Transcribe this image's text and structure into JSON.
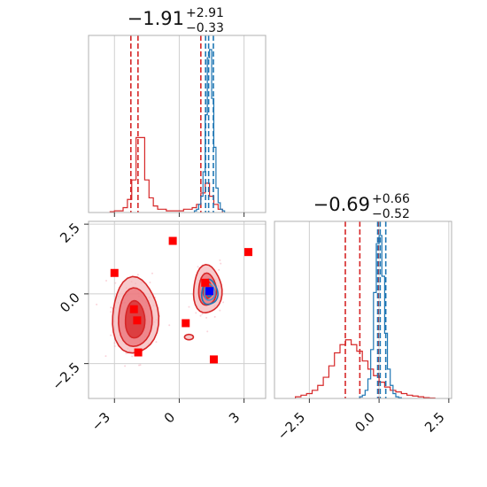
{
  "chart_data": [
    {
      "type": "histogram",
      "panel": "top-left",
      "title": "-1.91",
      "title_upper": "+2.91",
      "title_lower": "-0.33",
      "xlim": [
        -4.2,
        4.0
      ],
      "xticks": [
        -3,
        0,
        3
      ],
      "grid": true,
      "series": [
        {
          "color": "#d62728",
          "bin_edges": [
            -3.2,
            -3.0,
            -2.8,
            -2.6,
            -2.4,
            -2.2,
            -2.0,
            -1.8,
            -1.6,
            -1.4,
            -1.2,
            -1.0,
            -0.8,
            -0.6,
            -0.4,
            -0.2,
            0.0,
            0.2,
            0.4,
            0.6,
            0.8,
            1.0,
            1.2,
            1.4,
            1.6,
            1.8,
            2.0
          ],
          "counts": [
            0.005,
            0.01,
            0.01,
            0.03,
            0.08,
            0.2,
            0.46,
            0.46,
            0.2,
            0.09,
            0.04,
            0.02,
            0.02,
            0.01,
            0.01,
            0.01,
            0.01,
            0.02,
            0.02,
            0.03,
            0.05,
            0.12,
            0.18,
            0.1,
            0.05,
            0.02
          ],
          "quantiles": [
            -2.24,
            -1.91,
            1.0
          ]
        },
        {
          "color": "#1f77b4",
          "bin_edges": [
            0.7,
            0.8,
            0.9,
            1.0,
            1.1,
            1.2,
            1.3,
            1.4,
            1.5,
            1.6,
            1.7,
            1.8,
            1.9,
            2.0,
            2.1
          ],
          "counts": [
            0.01,
            0.02,
            0.05,
            0.1,
            0.25,
            0.6,
            0.95,
            1.0,
            0.7,
            0.4,
            0.15,
            0.06,
            0.02,
            0.01
          ],
          "quantiles": [
            1.22,
            1.36,
            1.58
          ]
        }
      ]
    },
    {
      "type": "contour",
      "panel": "bottom-left",
      "xlim": [
        -4.2,
        4.0
      ],
      "ylim": [
        -3.75,
        2.6
      ],
      "xticks": [
        -3,
        0,
        3
      ],
      "yticks": [
        2.5,
        0.0,
        -2.5
      ],
      "ytick_labels": [
        "2.5",
        "0.0",
        "−2.5"
      ],
      "grid": true,
      "red_points": [
        {
          "x": -3.0,
          "y": 0.75
        },
        {
          "x": -0.3,
          "y": 1.9
        },
        {
          "x": 3.2,
          "y": 1.5
        },
        {
          "x": 1.2,
          "y": 0.4
        },
        {
          "x": -2.1,
          "y": -0.55
        },
        {
          "x": -1.95,
          "y": -0.95
        },
        {
          "x": 0.3,
          "y": -1.05
        },
        {
          "x": -1.9,
          "y": -2.1
        },
        {
          "x": 1.6,
          "y": -2.35
        }
      ],
      "blue_points": [
        {
          "x": 1.4,
          "y": 0.1
        }
      ]
    },
    {
      "type": "histogram",
      "panel": "bottom-right",
      "title": "-0.69",
      "title_upper": "+0.66",
      "title_lower": "-0.52",
      "xlim": [
        -3.75,
        2.6
      ],
      "xticks": [
        -2.5,
        0.0,
        2.5
      ],
      "xtick_labels": [
        "−2.5",
        "0.0",
        "2.5"
      ],
      "grid": true,
      "series": [
        {
          "color": "#d62728",
          "bin_edges": [
            -3.0,
            -2.8,
            -2.6,
            -2.4,
            -2.2,
            -2.0,
            -1.8,
            -1.6,
            -1.4,
            -1.2,
            -1.0,
            -0.8,
            -0.6,
            -0.4,
            -0.2,
            0.0,
            0.2,
            0.4,
            0.6,
            0.8,
            1.0,
            1.2,
            1.4,
            1.6,
            1.8,
            2.0
          ],
          "counts": [
            0.01,
            0.02,
            0.03,
            0.05,
            0.08,
            0.13,
            0.2,
            0.28,
            0.33,
            0.36,
            0.33,
            0.29,
            0.23,
            0.18,
            0.14,
            0.1,
            0.07,
            0.05,
            0.04,
            0.03,
            0.02,
            0.015,
            0.01,
            0.005,
            0.003
          ],
          "quantiles": [
            -1.21,
            -0.69,
            -0.03
          ]
        },
        {
          "color": "#1f77b4",
          "bin_edges": [
            -0.7,
            -0.6,
            -0.5,
            -0.4,
            -0.3,
            -0.2,
            -0.1,
            0.0,
            0.1,
            0.2,
            0.3,
            0.4,
            0.5,
            0.6,
            0.7,
            0.8
          ],
          "counts": [
            0.01,
            0.02,
            0.05,
            0.12,
            0.3,
            0.65,
            0.95,
            1.0,
            0.75,
            0.4,
            0.18,
            0.08,
            0.03,
            0.01,
            0.005
          ],
          "quantiles": [
            -0.05,
            0.04,
            0.24
          ]
        }
      ]
    }
  ]
}
